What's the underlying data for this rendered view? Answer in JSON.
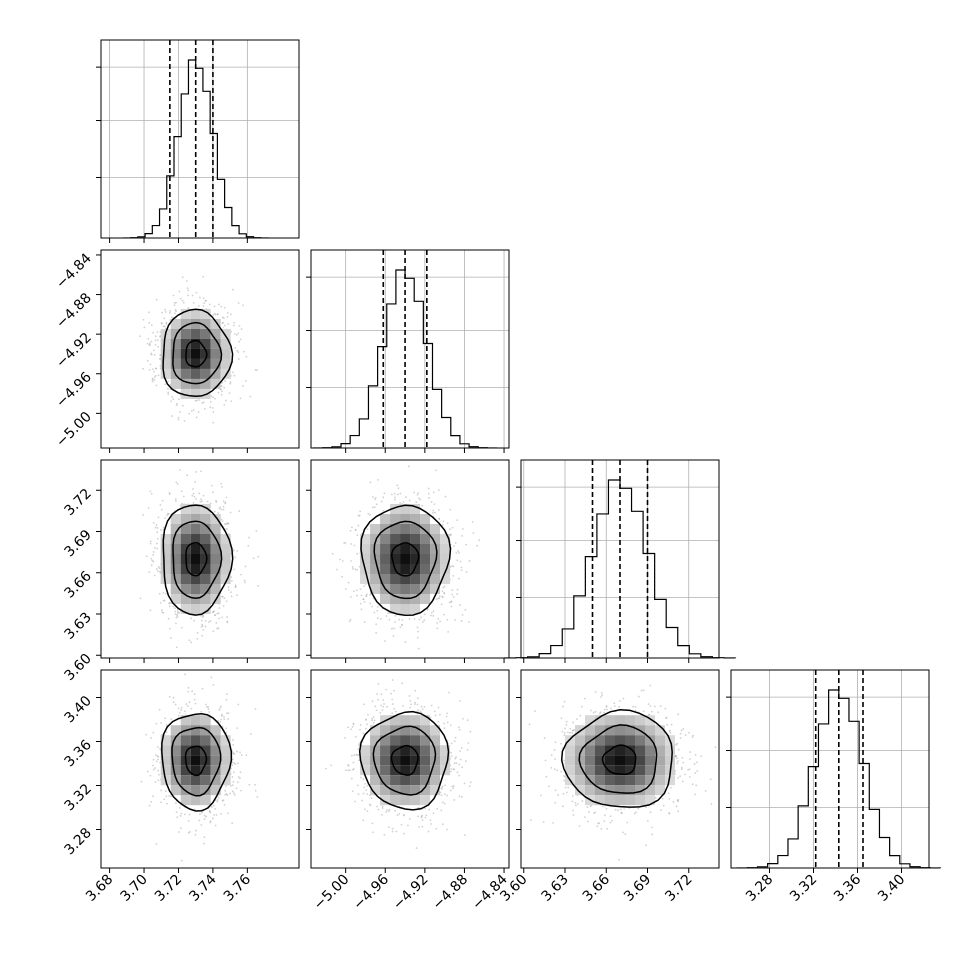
{
  "chart_data": {
    "type": "corner",
    "title": "",
    "parameters": [
      {
        "ticks": [
          3.68,
          3.7,
          3.72,
          3.74,
          3.76
        ],
        "tick_labels": [
          "3.68",
          "3.70",
          "3.72",
          "3.74",
          "3.76"
        ],
        "range": [
          3.675,
          3.79
        ],
        "median": 3.73,
        "q16": 3.715,
        "q84": 3.74,
        "std": 0.01
      },
      {
        "ticks": [
          -5.0,
          -4.96,
          -4.92,
          -4.88,
          -4.84
        ],
        "tick_labels": [
          "−5.00",
          "−4.96",
          "−4.92",
          "−4.88",
          "−4.84"
        ],
        "range": [
          -5.035,
          -4.835
        ],
        "median": -4.94,
        "q16": -4.962,
        "q84": -4.918,
        "std": 0.022
      },
      {
        "ticks": [
          3.6,
          3.63,
          3.66,
          3.69,
          3.72
        ],
        "tick_labels": [
          "3.60",
          "3.63",
          "3.66",
          "3.69",
          "3.72"
        ],
        "range": [
          3.598,
          3.742
        ],
        "median": 3.67,
        "q16": 3.65,
        "q84": 3.69,
        "std": 0.02
      },
      {
        "ticks": [
          3.28,
          3.32,
          3.36,
          3.4
        ],
        "tick_labels": [
          "3.28",
          "3.32",
          "3.36",
          "3.40"
        ],
        "range": [
          3.245,
          3.425
        ],
        "median": 3.343,
        "q16": 3.322,
        "q84": 3.365,
        "std": 0.022
      }
    ],
    "grid": true,
    "contour_levels": 3,
    "histogram_bins": 20
  }
}
